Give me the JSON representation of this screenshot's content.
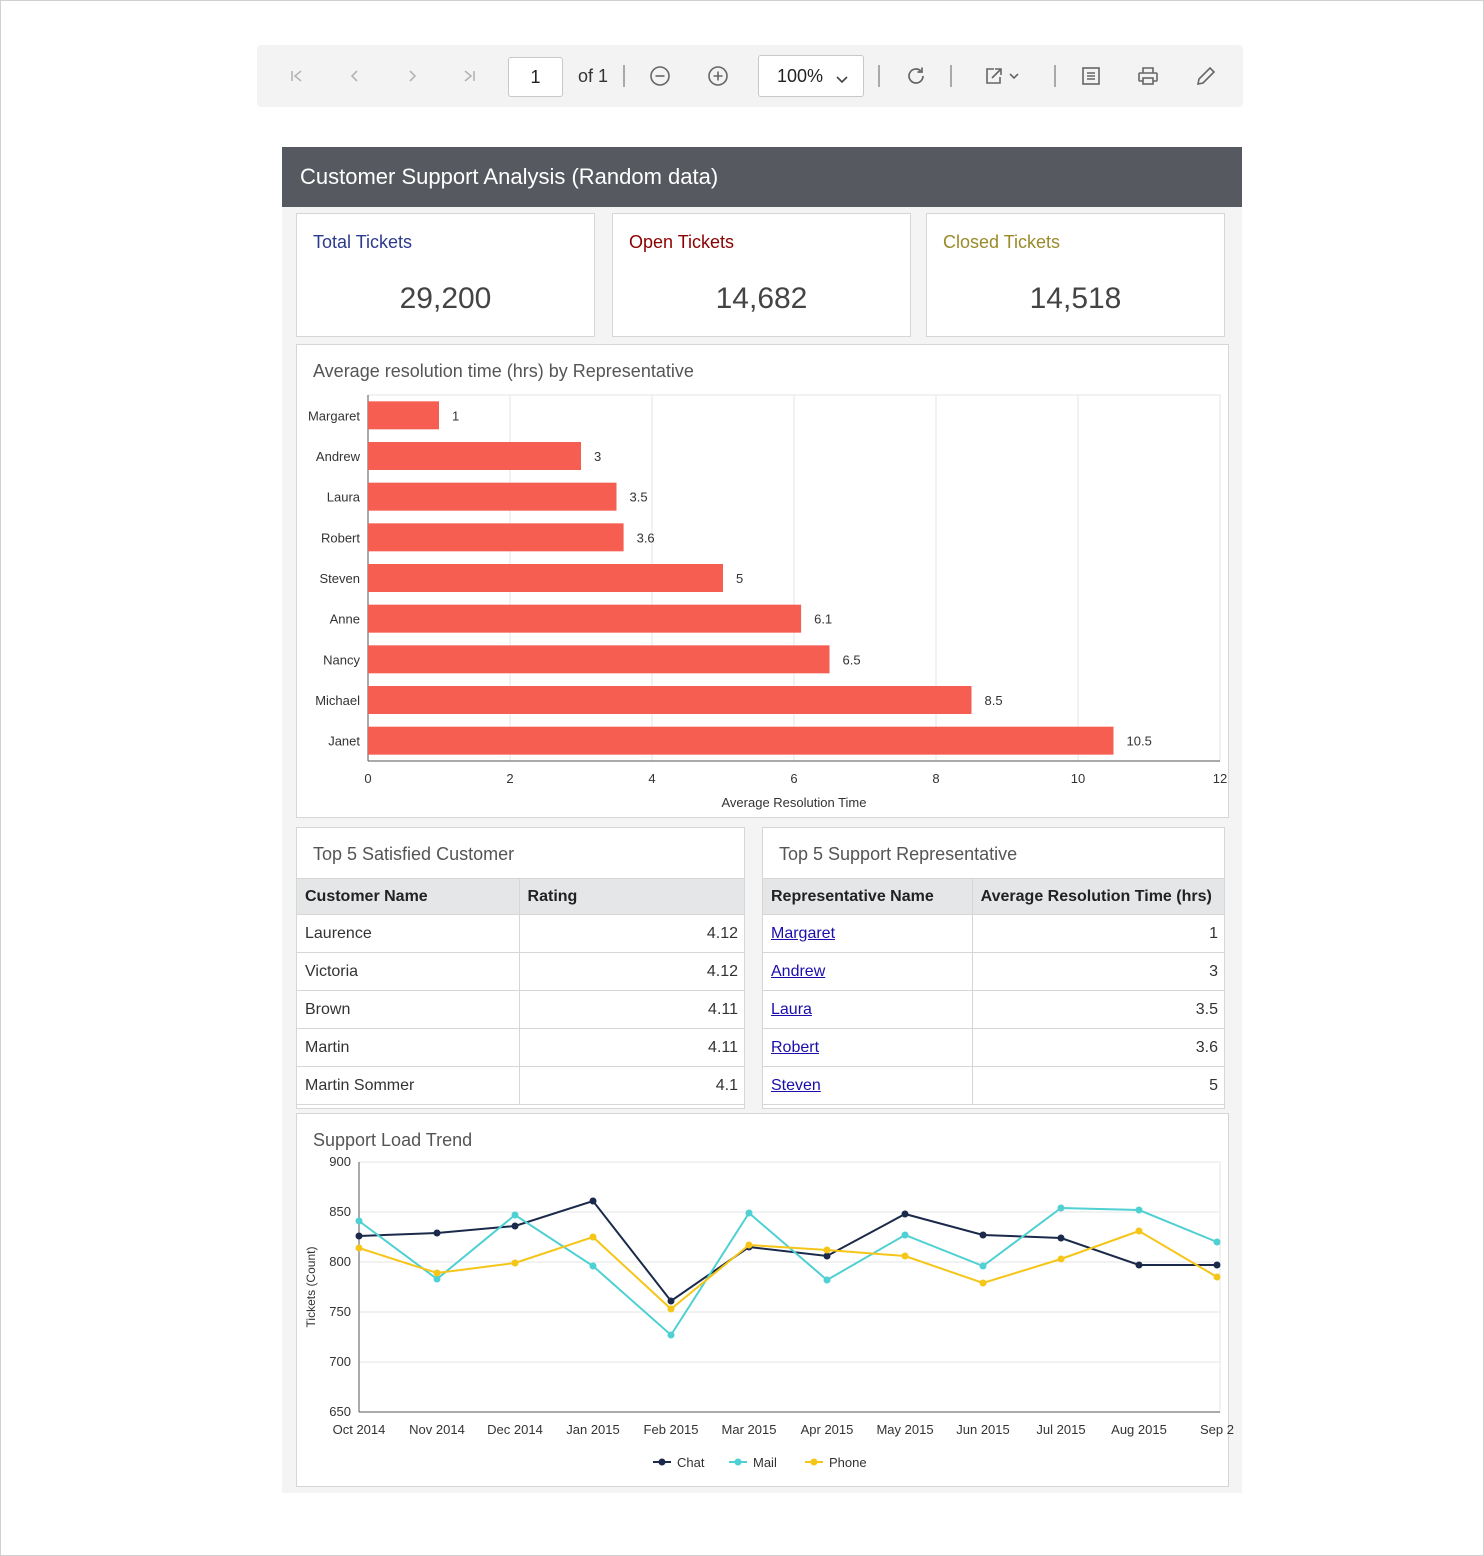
{
  "toolbar": {
    "page_current": "1",
    "page_of": "of 1",
    "zoom": "100%",
    "icons": [
      "first-page-icon",
      "prev-page-icon",
      "next-page-icon",
      "last-page-icon",
      "zoom-out-icon",
      "zoom-in-icon",
      "refresh-icon",
      "export-icon",
      "print-layout-icon",
      "print-icon",
      "annotate-icon"
    ]
  },
  "report": {
    "title": "Customer Support Analysis (Random data)",
    "kpis": [
      {
        "label": "Total Tickets",
        "value": "29,200",
        "color": "#2c3a8c"
      },
      {
        "label": "Open Tickets",
        "value": "14,682",
        "color": "#8b0000"
      },
      {
        "label": "Closed Tickets",
        "value": "14,518",
        "color": "#9a8a2a"
      }
    ],
    "bar_panel_title": "Average resolution time (hrs) by Representative",
    "customers_table": {
      "title": "Top 5 Satisfied Customer",
      "headers": [
        "Customer Name",
        "Rating"
      ],
      "rows": [
        [
          "Laurence",
          "4.12"
        ],
        [
          "Victoria",
          "4.12"
        ],
        [
          "Brown",
          "4.11"
        ],
        [
          "Martin",
          "4.11"
        ],
        [
          "Martin Sommer",
          "4.1"
        ]
      ]
    },
    "reps_table": {
      "title": "Top 5 Support Representative",
      "headers": [
        "Representative Name",
        "Average Resolution Time (hrs)"
      ],
      "rows": [
        [
          "Margaret",
          "1"
        ],
        [
          "Andrew",
          "3"
        ],
        [
          "Laura",
          "3.5"
        ],
        [
          "Robert",
          "3.6"
        ],
        [
          "Steven",
          "5"
        ]
      ]
    },
    "line_panel_title": "Support Load Trend"
  },
  "chart_data": [
    {
      "type": "bar",
      "orientation": "horizontal",
      "title": "Average resolution time (hrs) by Representative",
      "categories": [
        "Margaret",
        "Andrew",
        "Laura",
        "Robert",
        "Steven",
        "Anne",
        "Nancy",
        "Michael",
        "Janet"
      ],
      "values": [
        1,
        3,
        3.5,
        3.6,
        5,
        6.1,
        6.5,
        8.5,
        10.5
      ],
      "data_labels": [
        "1",
        "3",
        "3.5",
        "3.6",
        "5",
        "6.1",
        "6.5",
        "8.5",
        "10.5"
      ],
      "xlabel": "Average Resolution Time",
      "ylabel": "",
      "xlim": [
        0,
        12
      ],
      "xticks": [
        "0",
        "2",
        "4",
        "6",
        "8",
        "10",
        "12"
      ],
      "color": "#f65e52",
      "grid": true
    },
    {
      "type": "line",
      "title": "Support Load Trend",
      "x": [
        "Oct 2014",
        "Nov 2014",
        "Dec 2014",
        "Jan 2015",
        "Feb 2015",
        "Mar 2015",
        "Apr 2015",
        "May 2015",
        "Jun 2015",
        "Jul 2015",
        "Aug 2015",
        "Sep 2"
      ],
      "series": [
        {
          "name": "Chat",
          "color": "#1b2a4a",
          "values": [
            826,
            829,
            836,
            861,
            761,
            815,
            806,
            848,
            827,
            824,
            797,
            797
          ]
        },
        {
          "name": "Mail",
          "color": "#4fd0d3",
          "values": [
            841,
            783,
            847,
            796,
            727,
            849,
            782,
            827,
            796,
            854,
            852,
            820
          ]
        },
        {
          "name": "Phone",
          "color": "#f5c518",
          "values": [
            814,
            789,
            799,
            825,
            753,
            817,
            812,
            806,
            779,
            803,
            831,
            785
          ]
        }
      ],
      "ylabel": "Tickets (Count)",
      "ylim": [
        650,
        900
      ],
      "yticks": [
        "650",
        "700",
        "750",
        "800",
        "850",
        "900"
      ],
      "legend": "bottom",
      "grid": true
    }
  ]
}
